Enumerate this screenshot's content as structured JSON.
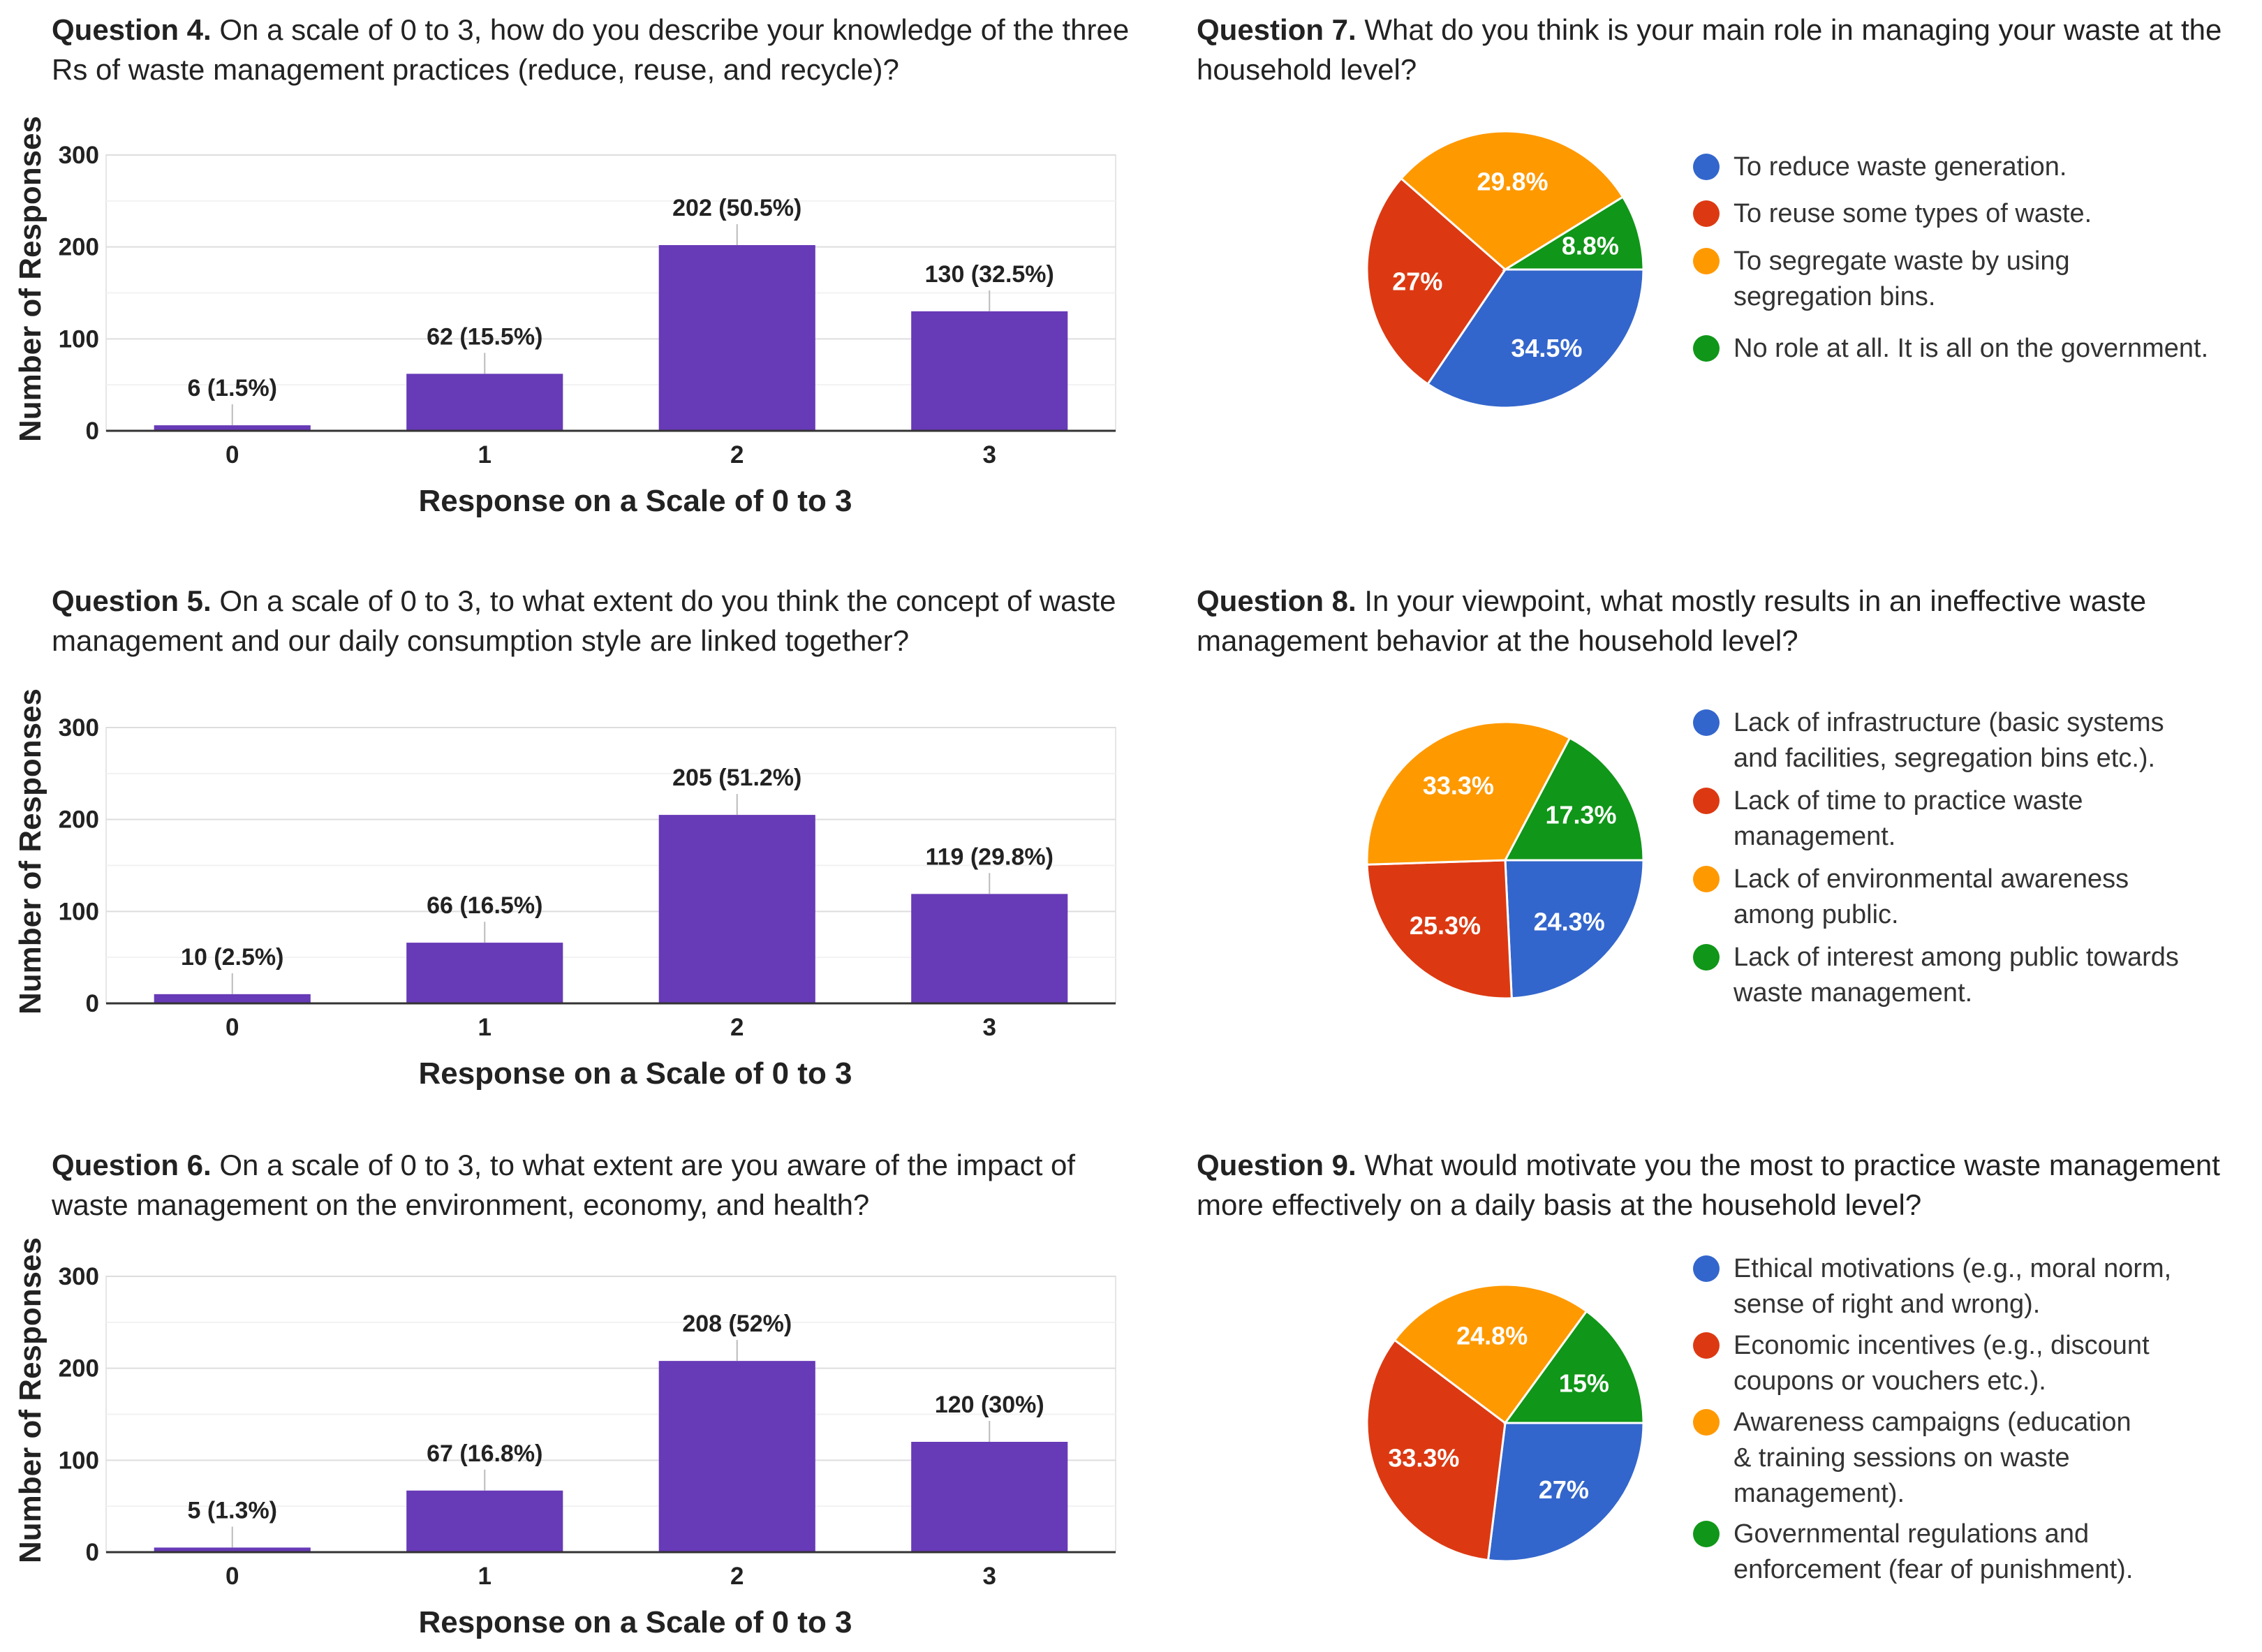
{
  "bar_panels": [
    {
      "number": "Question 4.",
      "text": "On a scale of 0 to 3, how do you describe your knowledge of the three Rs of waste management practices (reduce, reuse, and recycle)?"
    },
    {
      "number": "Question 5.",
      "text": "On a scale of 0 to 3, to what extent do you think the concept of waste management and our daily consumption style are linked together?"
    },
    {
      "number": "Question 6.",
      "text": "On a scale of 0 to 3, to what extent are you aware of the impact of waste management on the environment, economy, and health?"
    }
  ],
  "pie_panels": [
    {
      "number": "Question 7.",
      "text": "What do you think is your main role in managing your waste at the household level?"
    },
    {
      "number": "Question 8.",
      "text": "In your viewpoint, what mostly results in an ineffective waste management behavior at the household level?"
    },
    {
      "number": "Question 9.",
      "text": "What would motivate you the most to practice waste management more effectively on a daily basis at the household level?"
    }
  ],
  "colors": {
    "bar": "#673ab7",
    "blue": "#3366cc",
    "red": "#dc3912",
    "orange": "#ff9900",
    "green": "#109618"
  },
  "chart_data": [
    {
      "type": "bar",
      "title": "Question 4.",
      "categories": [
        "0",
        "1",
        "2",
        "3"
      ],
      "values": [
        6,
        62,
        202,
        130
      ],
      "labels": [
        "6 (1.5%)",
        "62 (15.5%)",
        "202 (50.5%)",
        "130 (32.5%)"
      ],
      "xlabel": "Response on a Scale of 0 to 3",
      "ylabel": "Number of Responses",
      "ylim": [
        0,
        300
      ],
      "yticks": [
        "0",
        "100",
        "200",
        "300"
      ]
    },
    {
      "type": "bar",
      "title": "Question 5.",
      "categories": [
        "0",
        "1",
        "2",
        "3"
      ],
      "values": [
        10,
        66,
        205,
        119
      ],
      "labels": [
        "10 (2.5%)",
        "66 (16.5%)",
        "205 (51.2%)",
        "119 (29.8%)"
      ],
      "xlabel": "Response on a Scale of 0 to 3",
      "ylabel": "Number of Responses",
      "ylim": [
        0,
        300
      ],
      "yticks": [
        "0",
        "100",
        "200",
        "300"
      ]
    },
    {
      "type": "bar",
      "title": "Question 6.",
      "categories": [
        "0",
        "1",
        "2",
        "3"
      ],
      "values": [
        5,
        67,
        208,
        120
      ],
      "labels": [
        "5 (1.3%)",
        "67 (16.8%)",
        "208 (52%)",
        "120 (30%)"
      ],
      "xlabel": "Response on a Scale of 0 to 3",
      "ylabel": "Number of Responses",
      "ylim": [
        0,
        300
      ],
      "yticks": [
        "0",
        "100",
        "200",
        "300"
      ]
    },
    {
      "type": "pie",
      "title": "Question 7.",
      "legend": "right",
      "slices": [
        {
          "label": "To reduce waste generation.",
          "value": 34.5,
          "pct": "34.5%",
          "color": "#3366cc"
        },
        {
          "label": "To reuse some types of waste.",
          "value": 27,
          "pct": "27%",
          "color": "#dc3912"
        },
        {
          "label": "To segregate waste by using segregation bins.",
          "value": 29.8,
          "pct": "29.8%",
          "color": "#ff9900"
        },
        {
          "label": "No role at all. It is all on the government.",
          "value": 8.8,
          "pct": "8.8%",
          "color": "#109618"
        }
      ]
    },
    {
      "type": "pie",
      "title": "Question 8.",
      "legend": "right",
      "slices": [
        {
          "label": "Lack of infrastructure (basic systems and facilities, segregation bins etc.).",
          "value": 24.3,
          "pct": "24.3%",
          "color": "#3366cc"
        },
        {
          "label": "Lack of time to practice waste management.",
          "value": 25.3,
          "pct": "25.3%",
          "color": "#dc3912"
        },
        {
          "label": "Lack of environmental awareness among public.",
          "value": 33.3,
          "pct": "33.3%",
          "color": "#ff9900"
        },
        {
          "label": "Lack of interest among public towards waste management.",
          "value": 17.3,
          "pct": "17.3%",
          "color": "#109618"
        }
      ]
    },
    {
      "type": "pie",
      "title": "Question 9.",
      "legend": "right",
      "slices": [
        {
          "label": "Ethical motivations (e.g., moral norm, sense of right and wrong).",
          "value": 27,
          "pct": "27%",
          "color": "#3366cc"
        },
        {
          "label": "Economic incentives (e.g., discount coupons or vouchers etc.).",
          "value": 33.3,
          "pct": "33.3%",
          "color": "#dc3912"
        },
        {
          "label": "Awareness campaigns (education & training sessions on waste management).",
          "value": 24.8,
          "pct": "24.8%",
          "color": "#ff9900"
        },
        {
          "label": "Governmental regulations and enforcement (fear of punishment).",
          "value": 15,
          "pct": "15%",
          "color": "#109618"
        }
      ]
    }
  ]
}
